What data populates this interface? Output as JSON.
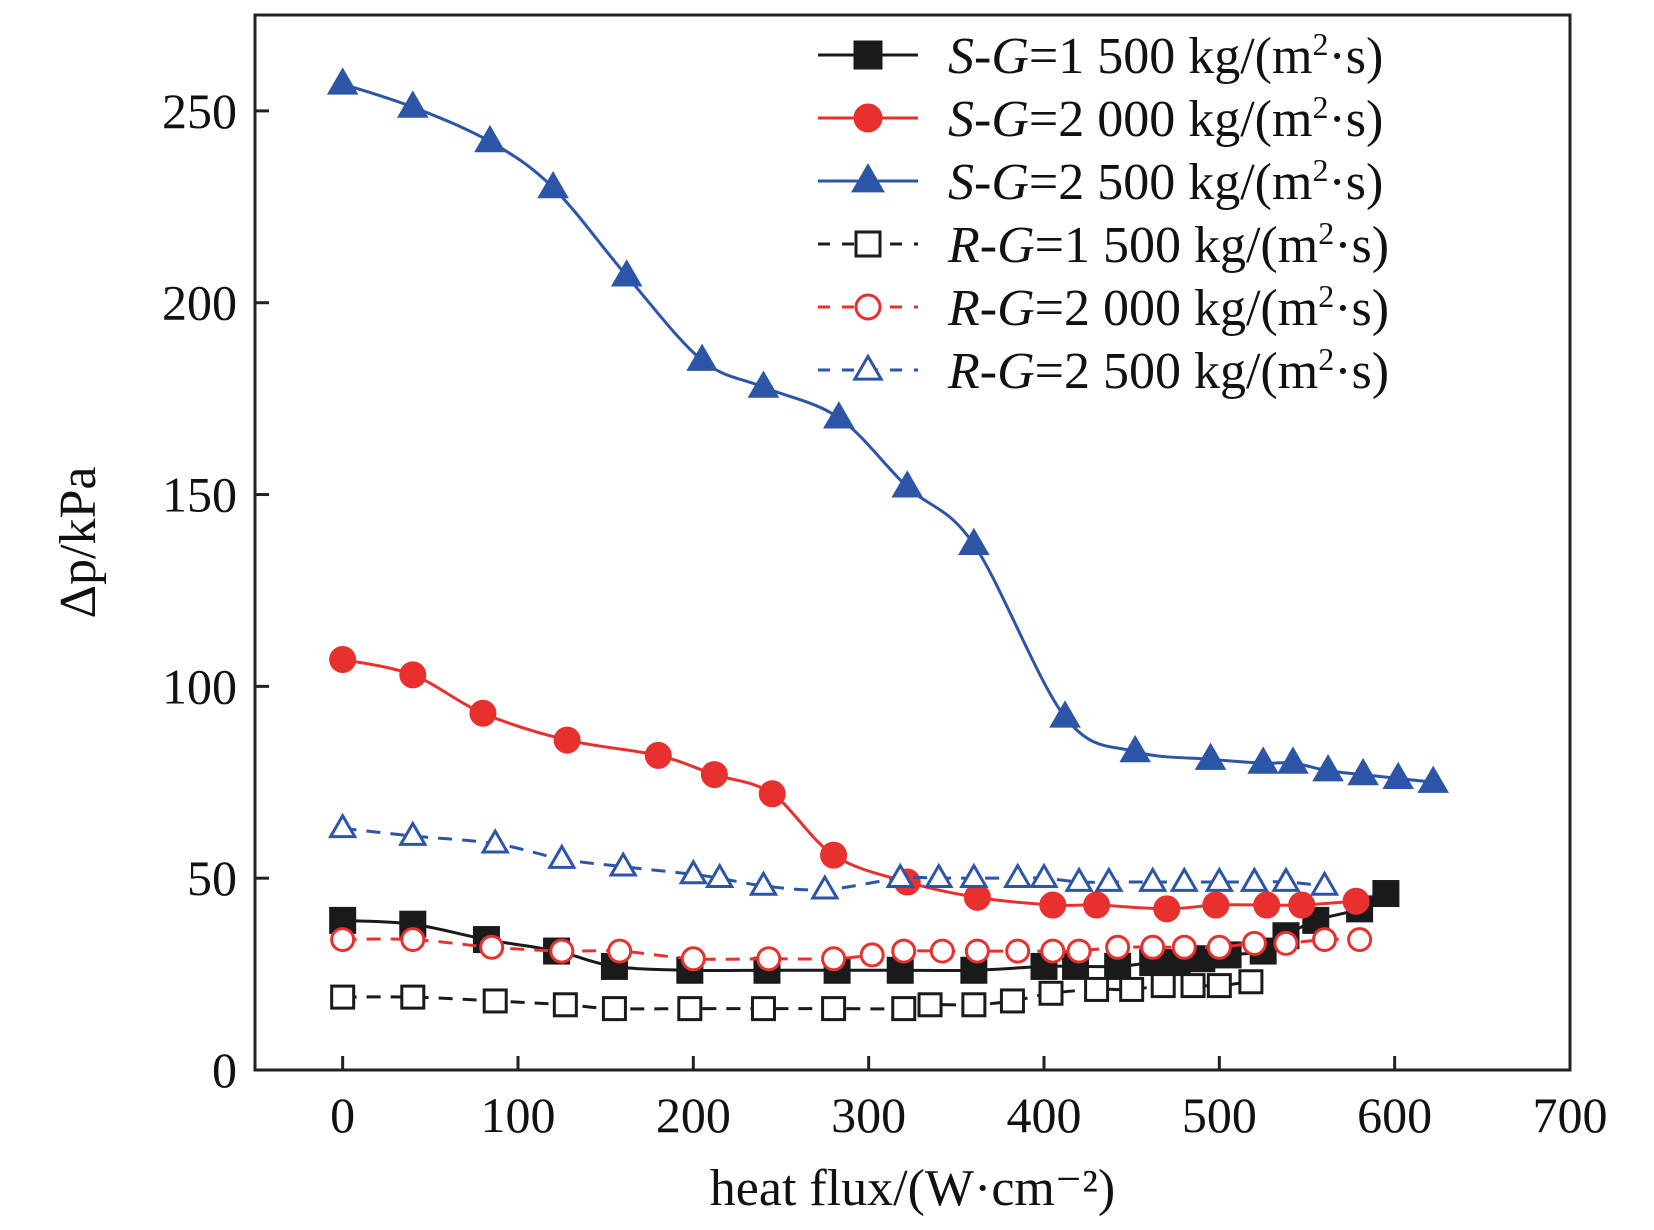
{
  "chart_data": {
    "type": "line",
    "xlabel": "heat flux/(W·cm⁻²)",
    "ylabel": "Δp/kPa",
    "xlim": [
      -50,
      700
    ],
    "ylim": [
      0,
      275
    ],
    "xticks": [
      0,
      100,
      200,
      300,
      400,
      500,
      600,
      700
    ],
    "yticks": [
      0,
      50,
      100,
      150,
      200,
      250
    ],
    "xtick_labels": [
      "0",
      "100",
      "200",
      "300",
      "400",
      "500",
      "600",
      "700"
    ],
    "ytick_labels": [
      "0",
      "50",
      "100",
      "150",
      "200",
      "250"
    ],
    "grid": false,
    "legend_position": "top-right",
    "series": [
      {
        "name": "S-G=1 500 kg/(m²·s)",
        "label_prefix": "S",
        "label_var": "G",
        "label_num": "=1 500 kg/(m",
        "label_sup": "2",
        "label_unit": "·s)",
        "color": "#1a1a1a",
        "marker": "square",
        "filled": true,
        "line": "solid",
        "x": [
          0,
          40,
          82,
          122,
          155,
          198,
          242,
          282,
          318,
          360,
          400,
          418,
          442,
          462,
          476,
          490,
          505,
          525,
          538,
          555,
          580,
          595
        ],
        "y": [
          39,
          38,
          34,
          31,
          27,
          26,
          26,
          26,
          26,
          26,
          27,
          27,
          27,
          28,
          28,
          29,
          30,
          31,
          35,
          39,
          42,
          46
        ]
      },
      {
        "name": "S-G=2 000 kg/(m²·s)",
        "label_prefix": "S",
        "label_var": "G",
        "label_num": "=2 000 kg/(m",
        "label_sup": "2",
        "label_unit": "·s)",
        "color": "#e8312f",
        "marker": "circle",
        "filled": true,
        "line": "solid",
        "x": [
          0,
          40,
          80,
          128,
          180,
          212,
          245,
          280,
          322,
          362,
          405,
          430,
          470,
          498,
          527,
          547,
          578
        ],
        "y": [
          107,
          103,
          93,
          86,
          82,
          77,
          72,
          56,
          49,
          45,
          43,
          43,
          42,
          43,
          43,
          43,
          44
        ]
      },
      {
        "name": "S-G=2 500 kg/(m²·s)",
        "label_prefix": "S",
        "label_var": "G",
        "label_num": "=2 500 kg/(m",
        "label_sup": "2",
        "label_unit": "·s)",
        "color": "#2c55a8",
        "marker": "triangle",
        "filled": true,
        "line": "solid",
        "x": [
          0,
          40,
          84,
          120,
          162,
          205,
          240,
          283,
          322,
          360,
          412,
          452,
          495,
          525,
          542,
          562,
          582,
          602,
          622
        ],
        "y": [
          257,
          251,
          242,
          230,
          207,
          185,
          178,
          170,
          152,
          137,
          92,
          83,
          81,
          80,
          80,
          78,
          77,
          76,
          75
        ]
      },
      {
        "name": "R-G=1 500 kg/(m²·s)",
        "label_prefix": "R",
        "label_var": "G",
        "label_num": "=1 500 kg/(m",
        "label_sup": "2",
        "label_unit": "·s)",
        "color": "#1a1a1a",
        "marker": "square",
        "filled": false,
        "line": "dashed",
        "x": [
          0,
          40,
          87,
          127,
          155,
          198,
          240,
          280,
          320,
          335,
          360,
          382,
          404,
          430,
          450,
          468,
          485,
          500,
          518
        ],
        "y": [
          19,
          19,
          18,
          17,
          16,
          16,
          16,
          16,
          16,
          17,
          17,
          18,
          20,
          21,
          21,
          22,
          22,
          22,
          23
        ]
      },
      {
        "name": "R-G=2 000 kg/(m²·s)",
        "label_prefix": "R",
        "label_var": "G",
        "label_num": "=2 000 kg/(m",
        "label_sup": "2",
        "label_unit": "·s)",
        "color": "#e8312f",
        "marker": "circle",
        "filled": false,
        "line": "dashed",
        "x": [
          0,
          40,
          85,
          125,
          158,
          200,
          243,
          280,
          302,
          320,
          342,
          362,
          385,
          405,
          420,
          442,
          462,
          480,
          500,
          520,
          538,
          560,
          580
        ],
        "y": [
          34,
          34,
          32,
          31,
          31,
          29,
          29,
          29,
          30,
          31,
          31,
          31,
          31,
          31,
          31,
          32,
          32,
          32,
          32,
          33,
          33,
          34,
          34
        ]
      },
      {
        "name": "R-G=2 500 kg/(m²·s)",
        "label_prefix": "R",
        "label_var": "G",
        "label_num": "=2 500 kg/(m",
        "label_sup": "2",
        "label_unit": "·s)",
        "color": "#2c55a8",
        "marker": "triangle",
        "filled": false,
        "line": "dashed",
        "x": [
          0,
          40,
          87,
          125,
          160,
          200,
          215,
          240,
          275,
          318,
          340,
          360,
          385,
          400,
          420,
          437,
          462,
          480,
          500,
          520,
          538,
          560
        ],
        "y": [
          63,
          61,
          59,
          55,
          53,
          51,
          50,
          48,
          47,
          50,
          50,
          50,
          50,
          50,
          49,
          49,
          49,
          49,
          49,
          49,
          49,
          48
        ]
      }
    ]
  }
}
